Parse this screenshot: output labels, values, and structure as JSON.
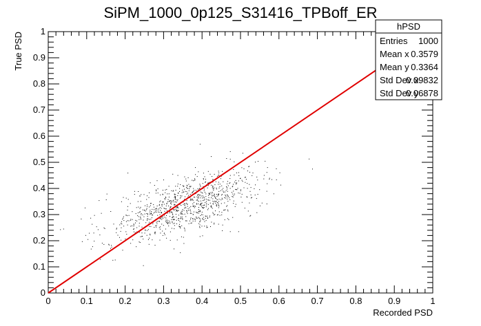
{
  "chart_data": {
    "type": "scatter",
    "title": "SiPM_1000_0p125_S31416_TPBoff_ER",
    "xlabel": "Recorded PSD",
    "ylabel": "True PSD",
    "xlim": [
      0,
      1
    ],
    "ylim": [
      0,
      1
    ],
    "x_ticks": [
      "0",
      "0.1",
      "0.2",
      "0.3",
      "0.4",
      "0.5",
      "0.6",
      "0.7",
      "0.8",
      "0.9",
      "1"
    ],
    "y_ticks": [
      "0",
      "0.1",
      "0.2",
      "0.3",
      "0.4",
      "0.5",
      "0.6",
      "0.7",
      "0.8",
      "0.9",
      "1"
    ],
    "grid": false,
    "reference_line": {
      "x": [
        0,
        1
      ],
      "y": [
        0,
        1
      ],
      "color": "#e00000"
    },
    "marker_color": "#000000",
    "stats_box": {
      "title": "hPSD",
      "rows": [
        {
          "label": "Entries",
          "value": "1000"
        },
        {
          "label": "Mean x",
          "value": "0.3579"
        },
        {
          "label": "Mean y",
          "value": "0.3364"
        },
        {
          "label": "Std Dev x",
          "value": "0.09832"
        },
        {
          "label": "Std Dev y",
          "value": "0.06878"
        }
      ]
    },
    "distribution": {
      "entries": 1000,
      "mean_x": 0.3579,
      "mean_y": 0.3364,
      "std_x": 0.09832,
      "std_y": 0.06878
    }
  }
}
